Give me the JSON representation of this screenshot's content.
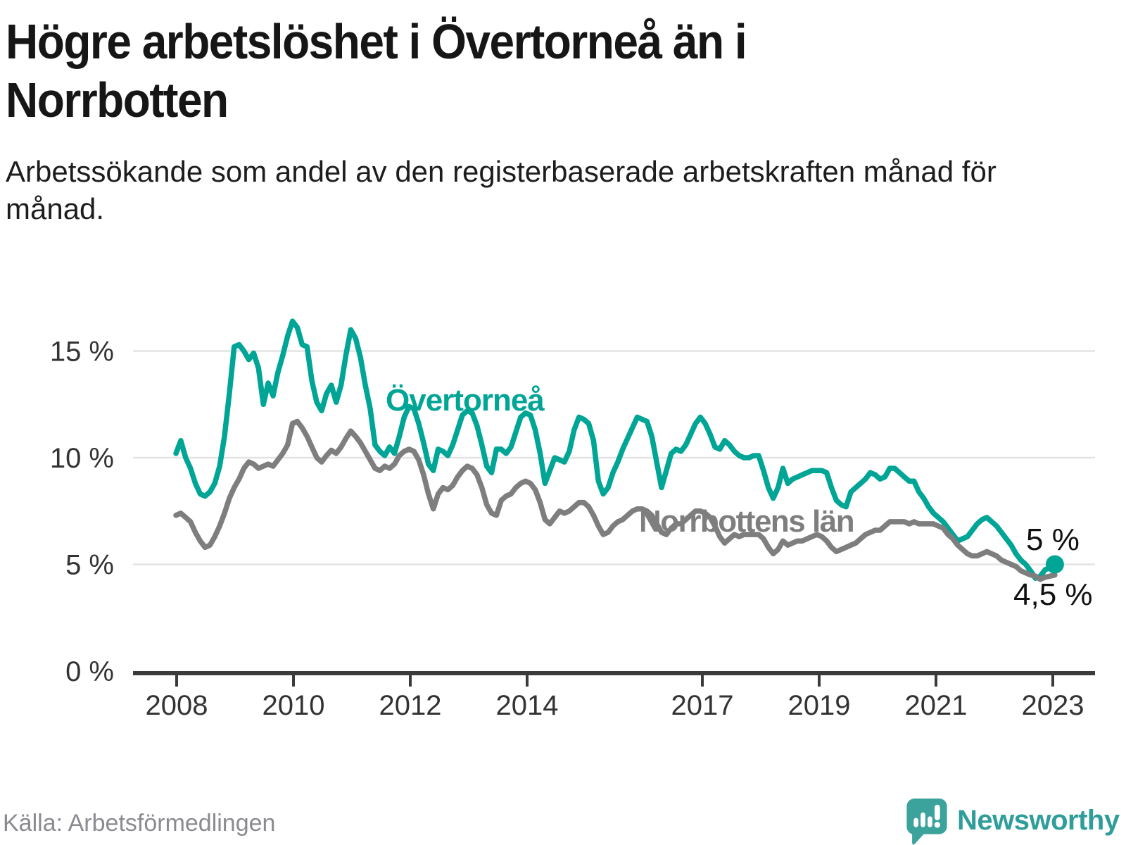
{
  "title": "Högre arbetslöshet i Övertorneå än i Norrbotten",
  "subtitle": "Arbetssökande som andel av den registerbaserade arbetskraften månad för månad.",
  "source": "Källa: Arbetsförmedlingen",
  "logo": {
    "text": "Newsworthy",
    "icon": "speech-bubble-bar-chart-exclamation"
  },
  "colors": {
    "overtornea": "#00a596",
    "norrbotten": "#7e7e7e",
    "grid": "#e3e3e3",
    "axis": "#3b3b3b",
    "tick_label": "#333333",
    "title": "#161616",
    "end_label": "#111111",
    "source": "#8a8a90",
    "logo": "#2f9d99",
    "logo_icon": "#3ba39c"
  },
  "chart_data": {
    "type": "line",
    "frequency": "monthly",
    "x_start": "2008-01",
    "x_end": "2023-02",
    "ylim": [
      0,
      17
    ],
    "grid": "horizontal",
    "legend_position": "inline-labels",
    "y_ticks": [
      {
        "value": 0,
        "label": "0 %"
      },
      {
        "value": 5,
        "label": "5 %"
      },
      {
        "value": 10,
        "label": "10 %"
      },
      {
        "value": 15,
        "label": "15 %"
      }
    ],
    "x_ticks": [
      {
        "year": 2008,
        "label": "2008"
      },
      {
        "year": 2010,
        "label": "2010"
      },
      {
        "year": 2012,
        "label": "2012"
      },
      {
        "year": 2014,
        "label": "2014"
      },
      {
        "year": 2017,
        "label": "2017"
      },
      {
        "year": 2019,
        "label": "2019"
      },
      {
        "year": 2021,
        "label": "2021"
      },
      {
        "year": 2023,
        "label": "2023"
      }
    ],
    "series": [
      {
        "id": "overtornea",
        "name": "Övertorneå",
        "color_key": "overtornea",
        "end_label": "5 %",
        "end_dot": true,
        "values": [
          10.2,
          10.8,
          10.0,
          9.5,
          8.8,
          8.3,
          8.2,
          8.4,
          8.8,
          9.6,
          11.0,
          13.0,
          15.2,
          15.3,
          15.0,
          14.6,
          14.9,
          14.2,
          12.5,
          13.5,
          12.9,
          14.0,
          14.8,
          15.7,
          16.4,
          16.1,
          15.3,
          15.2,
          13.6,
          12.6,
          12.2,
          13.0,
          13.4,
          12.6,
          13.4,
          14.8,
          16.0,
          15.6,
          14.7,
          13.4,
          12.3,
          10.6,
          10.3,
          10.1,
          10.5,
          10.2,
          11.0,
          11.9,
          12.4,
          12.3,
          11.6,
          10.7,
          9.7,
          9.4,
          10.4,
          10.3,
          10.1,
          10.6,
          11.3,
          12.0,
          12.2,
          12.1,
          11.5,
          10.6,
          9.6,
          9.3,
          10.4,
          10.4,
          10.2,
          10.5,
          11.2,
          11.9,
          12.1,
          12.0,
          11.3,
          10.2,
          8.8,
          9.4,
          10.0,
          9.9,
          9.8,
          10.3,
          11.3,
          11.9,
          11.8,
          11.6,
          10.8,
          8.9,
          8.3,
          8.6,
          9.3,
          9.8,
          10.4,
          10.9,
          11.4,
          11.9,
          11.8,
          11.7,
          11.0,
          9.8,
          8.6,
          9.4,
          10.2,
          10.4,
          10.3,
          10.6,
          11.1,
          11.6,
          11.9,
          11.6,
          11.1,
          10.5,
          10.4,
          10.8,
          10.6,
          10.3,
          10.1,
          10.0,
          10.0,
          10.1,
          10.1,
          9.4,
          8.6,
          8.1,
          8.6,
          9.5,
          8.8,
          9.0,
          9.1,
          9.2,
          9.3,
          9.4,
          9.4,
          9.4,
          9.3,
          8.6,
          8.0,
          7.8,
          7.7,
          8.4,
          8.6,
          8.8,
          9.0,
          9.3,
          9.2,
          9.0,
          9.1,
          9.5,
          9.5,
          9.3,
          9.1,
          8.9,
          8.9,
          8.4,
          8.1,
          7.7,
          7.4,
          7.2,
          7.0,
          6.7,
          6.4,
          6.1,
          6.2,
          6.3,
          6.6,
          6.9,
          7.1,
          7.2,
          7.0,
          6.8,
          6.5,
          6.2,
          5.9,
          5.5,
          5.2,
          5.0,
          4.7,
          4.35,
          4.45,
          4.75,
          4.85,
          5.0
        ]
      },
      {
        "id": "norrbotten",
        "name": "Norrbottens län",
        "color_key": "norrbotten",
        "end_label": "4,5 %",
        "end_dot": false,
        "values": [
          7.3,
          7.4,
          7.2,
          7.0,
          6.5,
          6.1,
          5.8,
          5.9,
          6.3,
          6.8,
          7.4,
          8.1,
          8.6,
          9.0,
          9.5,
          9.8,
          9.7,
          9.5,
          9.6,
          9.7,
          9.6,
          9.9,
          10.2,
          10.6,
          11.6,
          11.7,
          11.4,
          11.0,
          10.5,
          10.0,
          9.8,
          10.1,
          10.35,
          10.2,
          10.5,
          10.9,
          11.25,
          11.0,
          10.7,
          10.3,
          9.9,
          9.5,
          9.4,
          9.6,
          9.5,
          9.7,
          10.1,
          10.3,
          10.4,
          10.3,
          9.9,
          9.2,
          8.3,
          7.6,
          8.3,
          8.6,
          8.5,
          8.7,
          9.1,
          9.4,
          9.6,
          9.5,
          9.2,
          8.6,
          7.8,
          7.4,
          7.3,
          8.0,
          8.2,
          8.3,
          8.6,
          8.8,
          8.9,
          8.8,
          8.5,
          7.9,
          7.1,
          6.9,
          7.2,
          7.5,
          7.4,
          7.5,
          7.7,
          7.9,
          7.9,
          7.7,
          7.3,
          6.8,
          6.4,
          6.5,
          6.8,
          7.0,
          7.1,
          7.3,
          7.5,
          7.6,
          7.6,
          7.5,
          7.3,
          6.9,
          6.5,
          6.4,
          6.7,
          6.9,
          6.9,
          7.1,
          7.3,
          7.5,
          7.5,
          7.4,
          7.2,
          6.8,
          6.3,
          6.0,
          6.2,
          6.4,
          6.3,
          6.4,
          6.4,
          6.4,
          6.4,
          6.2,
          5.8,
          5.5,
          5.7,
          6.1,
          5.9,
          6.0,
          6.1,
          6.1,
          6.2,
          6.3,
          6.4,
          6.3,
          6.1,
          5.8,
          5.6,
          5.7,
          5.8,
          5.9,
          6.0,
          6.2,
          6.4,
          6.5,
          6.6,
          6.6,
          6.8,
          7.0,
          7.0,
          7.0,
          7.0,
          6.9,
          7.0,
          6.9,
          6.9,
          6.9,
          6.9,
          6.8,
          6.7,
          6.4,
          6.2,
          5.9,
          5.7,
          5.5,
          5.4,
          5.4,
          5.5,
          5.6,
          5.5,
          5.4,
          5.2,
          5.1,
          5.0,
          4.9,
          4.7,
          4.6,
          4.5,
          4.45,
          4.3,
          4.4,
          4.45,
          4.5
        ]
      }
    ]
  }
}
